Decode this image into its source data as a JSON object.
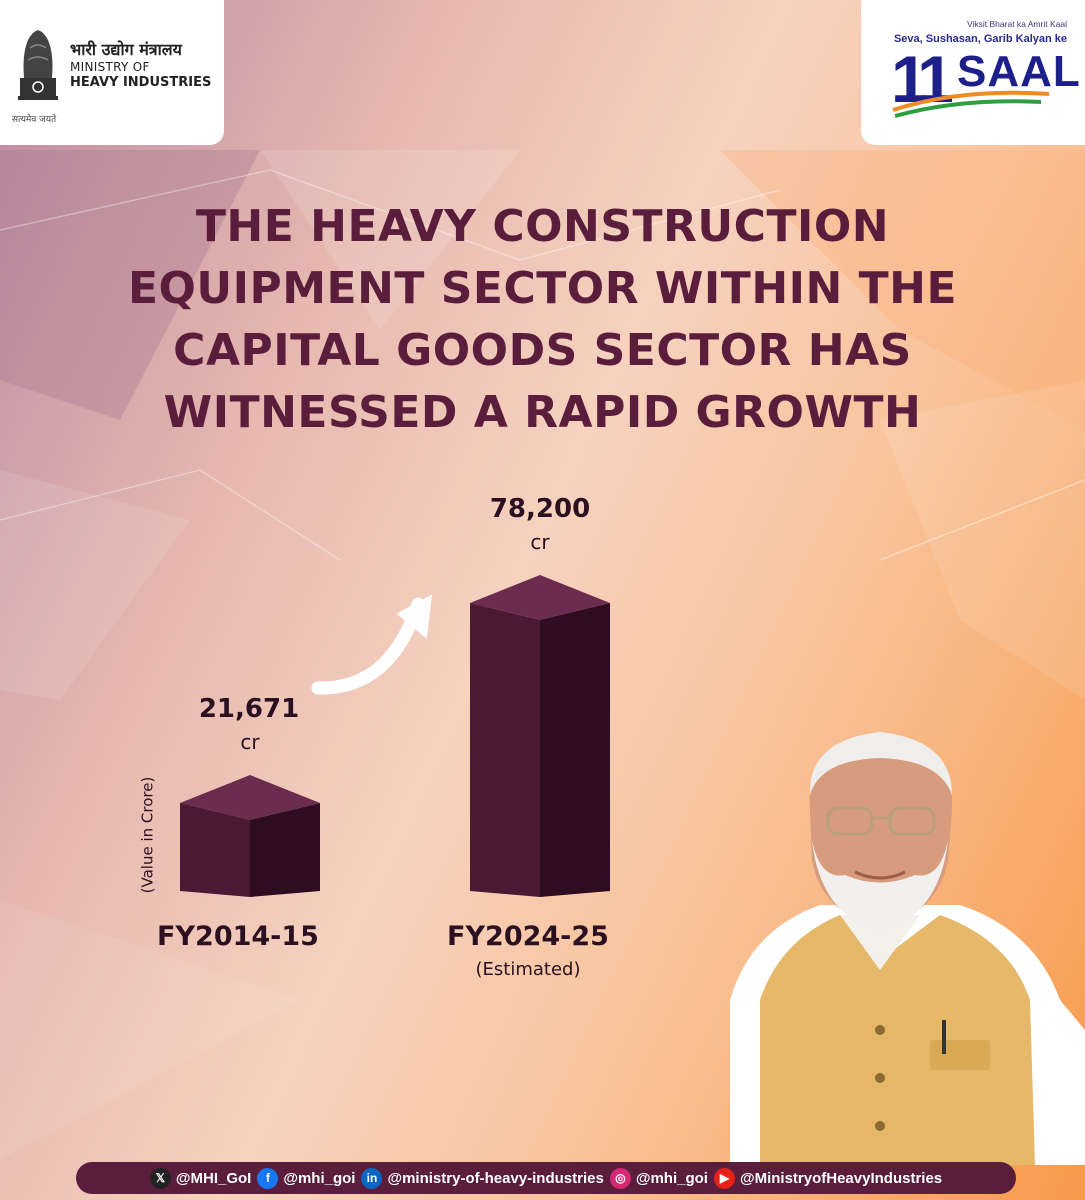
{
  "header": {
    "ministry_hindi": "भारी उद्योग मंत्रालय",
    "ministry_line1": "MINISTRY OF",
    "ministry_line2": "HEAVY INDUSTRIES",
    "motto": "सत्यमेव जयते",
    "campaign_line1": "Viksit Bharat ka Amrit Kaal",
    "campaign_line2": "Seva, Sushasan, Garib Kalyan ke",
    "campaign_number": "11",
    "campaign_word": "SAAL"
  },
  "headline": "THE HEAVY CONSTRUCTION EQUIPMENT SECTOR WITHIN THE CAPITAL GOODS SECTOR HAS WITNESSED A RAPID GROWTH",
  "chart_data": {
    "type": "bar",
    "title": "THE HEAVY CONSTRUCTION EQUIPMENT SECTOR WITHIN THE CAPITAL GOODS SECTOR HAS WITNESSED A RAPID GROWTH",
    "ylabel": "(Value in Crore)",
    "xlabel": "",
    "categories": [
      "FY2014-15",
      "FY2024-25"
    ],
    "category_notes": [
      "",
      "(Estimated)"
    ],
    "values": [
      21671,
      78200
    ],
    "value_labels": [
      "21,671",
      "78,200"
    ],
    "unit_label": "cr",
    "ylim": [
      0,
      78200
    ],
    "grid": false,
    "colors": {
      "bar_front": "#4a1a35",
      "bar_side": "#2e0c22",
      "bar_top": "#6c2c4f"
    }
  },
  "footer": {
    "x": {
      "icon": "x-icon",
      "handle": "@MHI_GoI"
    },
    "facebook": {
      "icon": "facebook-icon",
      "handle": "@mhi_goi"
    },
    "linkedin": {
      "icon": "linkedin-icon",
      "handle": "@ministry-of-heavy-industries"
    },
    "instagram": {
      "icon": "instagram-icon",
      "handle": "@mhi_goi"
    },
    "youtube": {
      "icon": "youtube-icon",
      "handle": "@MinistryofHeavyIndustries"
    }
  }
}
